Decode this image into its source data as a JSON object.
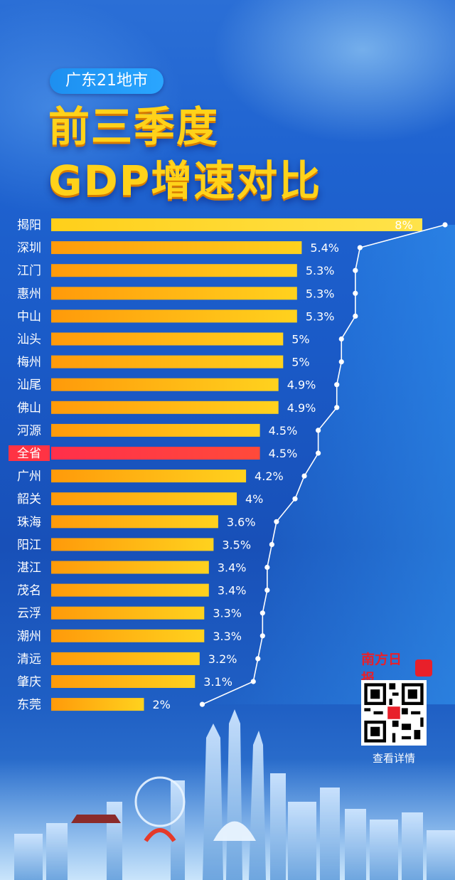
{
  "chart_data": {
    "type": "bar",
    "orientation": "horizontal",
    "subtitle": "广东21地市",
    "title_line1": "前三季度",
    "title_line2": "GDP增速对比",
    "categories": [
      "揭阳",
      "深圳",
      "江门",
      "惠州",
      "中山",
      "汕头",
      "梅州",
      "汕尾",
      "佛山",
      "河源",
      "全省",
      "广州",
      "韶关",
      "珠海",
      "阳江",
      "湛江",
      "茂名",
      "云浮",
      "潮州",
      "清远",
      "肇庆",
      "东莞"
    ],
    "values": [
      8,
      5.4,
      5.3,
      5.3,
      5.3,
      5,
      5,
      4.9,
      4.9,
      4.5,
      4.5,
      4.2,
      4,
      3.6,
      3.5,
      3.4,
      3.4,
      3.3,
      3.3,
      3.2,
      3.1,
      2
    ],
    "value_labels": [
      "8%",
      "5.4%",
      "5.3%",
      "5.3%",
      "5.3%",
      "5%",
      "5%",
      "4.9%",
      "4.9%",
      "4.5%",
      "4.5%",
      "4.2%",
      "4%",
      "3.6%",
      "3.5%",
      "3.4%",
      "3.4%",
      "3.3%",
      "3.3%",
      "3.2%",
      "3.1%",
      "2%"
    ],
    "unit": "%",
    "highlight": "全省",
    "colors": {
      "bar": "#ffb81c",
      "highlight": "#ff3344"
    }
  },
  "branding": {
    "publisher": "南方日报",
    "qr_caption": "查看详情"
  }
}
